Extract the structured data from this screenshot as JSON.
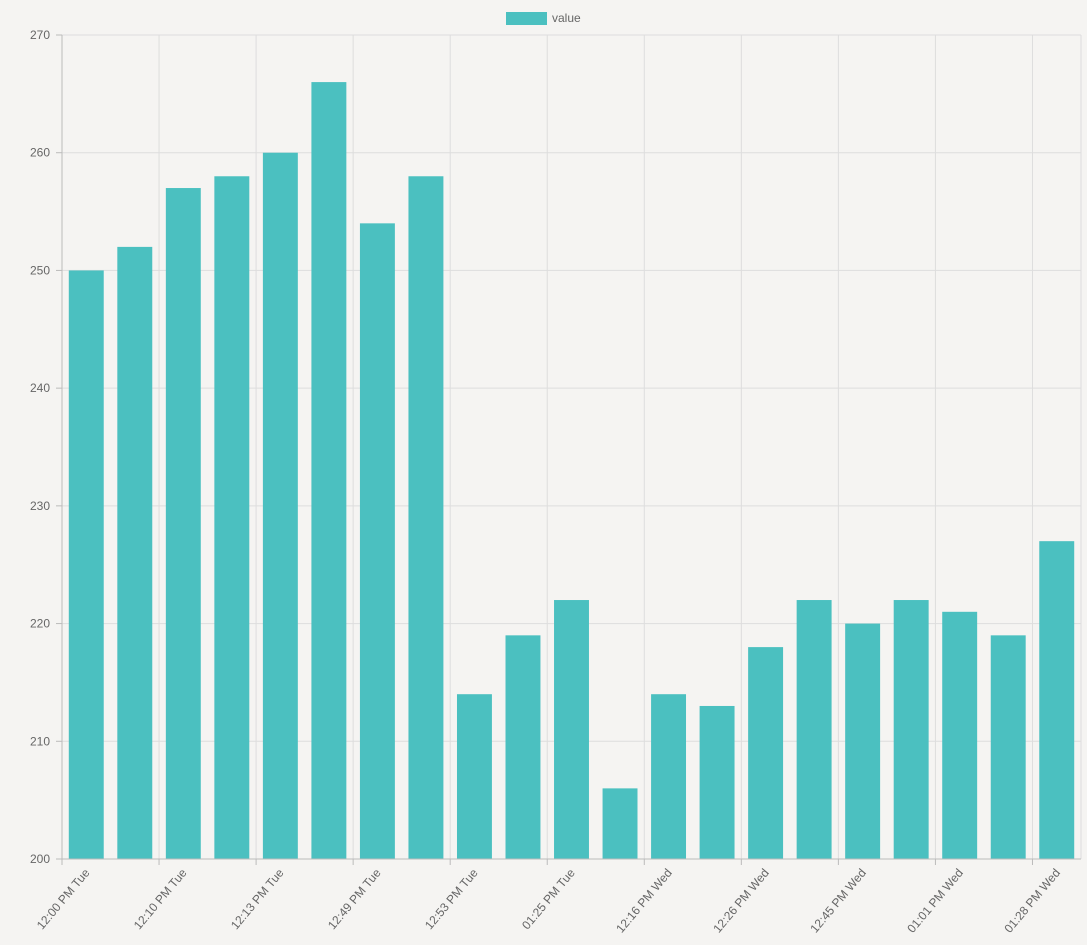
{
  "chart_data": {
    "type": "bar",
    "title": "",
    "xlabel": "",
    "ylabel": "",
    "ylim": [
      200,
      270
    ],
    "y_ticks": [
      200,
      210,
      220,
      230,
      240,
      250,
      260,
      270
    ],
    "grid": true,
    "legend_position": "top-center",
    "categories": [
      "12:00 PM Tue",
      "",
      "12:10 PM Tue",
      "",
      "12:13 PM Tue",
      "",
      "12:49 PM Tue",
      "",
      "12:53 PM Tue",
      "",
      "01:25 PM Tue",
      "",
      "12:16 PM Wed",
      "",
      "12:26 PM Wed",
      "",
      "12:45 PM Wed",
      "",
      "01:01 PM Wed",
      "",
      "01:28 PM Wed"
    ],
    "series": [
      {
        "name": "value",
        "color": "#4bc0c0",
        "values": [
          250,
          252,
          257,
          258,
          260,
          266,
          254,
          258,
          214,
          219,
          222,
          206,
          214,
          213,
          218,
          222,
          220,
          222,
          221,
          219,
          227
        ]
      }
    ]
  }
}
